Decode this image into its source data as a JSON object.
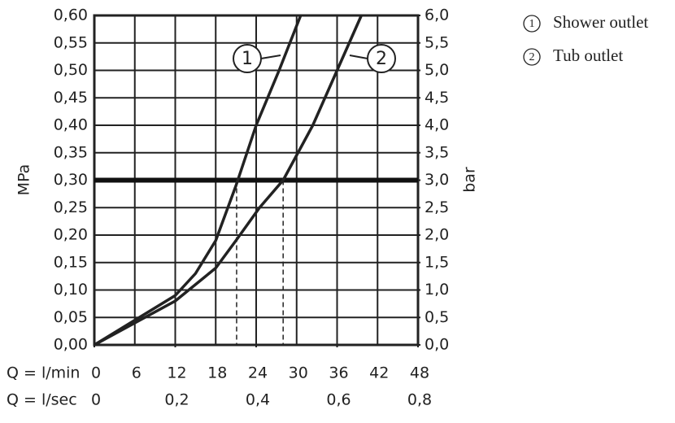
{
  "chart_data": {
    "type": "line",
    "x_label": "Q = l/min",
    "x2_label": "Q = l/sec",
    "y_label": "MPa",
    "y2_label": "bar",
    "xlim": [
      0,
      48
    ],
    "xticks": [
      0,
      6,
      12,
      18,
      24,
      30,
      36,
      42,
      48
    ],
    "x2lim": [
      0,
      0.8
    ],
    "x2ticks": [
      0,
      {
        "value": 0.2,
        "label": "0,2"
      },
      {
        "value": 0.4,
        "label": "0,4"
      },
      {
        "value": 0.6,
        "label": "0,6"
      },
      {
        "value": 0.8,
        "label": "0,8"
      }
    ],
    "ylim": [
      0,
      0.6
    ],
    "yticks": [
      {
        "value": 0,
        "label": "0,00"
      },
      {
        "value": 0.05,
        "label": "0,05"
      },
      {
        "value": 0.1,
        "label": "0,10"
      },
      {
        "value": 0.15,
        "label": "0,15"
      },
      {
        "value": 0.2,
        "label": "0,20"
      },
      {
        "value": 0.25,
        "label": "0,25"
      },
      {
        "value": 0.3,
        "label": "0,30"
      },
      {
        "value": 0.35,
        "label": "0,35"
      },
      {
        "value": 0.4,
        "label": "0,40"
      },
      {
        "value": 0.45,
        "label": "0,45"
      },
      {
        "value": 0.5,
        "label": "0,50"
      },
      {
        "value": 0.55,
        "label": "0,55"
      },
      {
        "value": 0.6,
        "label": "0,60"
      }
    ],
    "y2lim": [
      0,
      6
    ],
    "y2ticks": [
      {
        "value": 0,
        "label": "0,0"
      },
      {
        "value": 0.5,
        "label": "0,5"
      },
      {
        "value": 1,
        "label": "1,0"
      },
      {
        "value": 1.5,
        "label": "1,5"
      },
      {
        "value": 2,
        "label": "2,0"
      },
      {
        "value": 2.5,
        "label": "2,5"
      },
      {
        "value": 3,
        "label": "3,0"
      },
      {
        "value": 3.5,
        "label": "3,5"
      },
      {
        "value": 4,
        "label": "4,0"
      },
      {
        "value": 4.5,
        "label": "4,5"
      },
      {
        "value": 5,
        "label": "5,0"
      },
      {
        "value": 5.5,
        "label": "5,5"
      },
      {
        "value": 6,
        "label": "6,0"
      }
    ],
    "grid": true,
    "reference_y": 0.3,
    "guide_x": [
      21.1,
      28
    ],
    "series": [
      {
        "name": "Shower outlet",
        "label": "1",
        "color": "#222222",
        "x": [
          0,
          6,
          12,
          15,
          18,
          21,
          24,
          27.4,
          30.6
        ],
        "values": [
          0,
          0.045,
          0.09,
          0.13,
          0.19,
          0.29,
          0.4,
          0.5,
          0.6
        ]
      },
      {
        "name": "Tub outlet",
        "label": "2",
        "color": "#222222",
        "x": [
          0,
          6,
          12,
          18,
          21,
          24.5,
          28,
          32.4,
          36,
          39.6
        ],
        "values": [
          0,
          0.04,
          0.08,
          0.14,
          0.19,
          0.25,
          0.3,
          0.4,
          0.5,
          0.6
        ]
      }
    ]
  }
}
